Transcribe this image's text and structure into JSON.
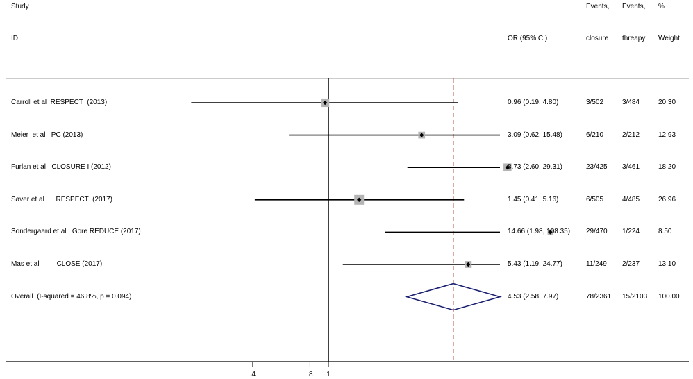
{
  "header": {
    "study": "Study",
    "id": "ID",
    "or_ci": "OR (95% CI)",
    "events_closure_1": "Events,",
    "events_closure_2": "closure",
    "events_therapy_1": "Events,",
    "events_therapy_2": "threapy",
    "weight_1": "%",
    "weight_2": "Weight"
  },
  "chart_data": {
    "type": "forest",
    "scale": "log",
    "null_value": 1,
    "overall_line_value": 4.53,
    "ticks": [
      ".4",
      ".8",
      "1"
    ],
    "tick_values": [
      0.4,
      0.8,
      1
    ],
    "studies": [
      {
        "label": "Carroll et al  RESPECT  (2013)",
        "or": 0.96,
        "lo": 0.19,
        "hi": 4.8,
        "or_text": "0.96 (0.19, 4.80)",
        "ev_closure": "3/502",
        "ev_therapy": "3/484",
        "weight": 20.3,
        "weight_text": "20.30"
      },
      {
        "label": "Meier  et al   PC (2013)",
        "or": 3.09,
        "lo": 0.62,
        "hi": 15.48,
        "or_text": "3.09 (0.62, 15.48)",
        "ev_closure": "6/210",
        "ev_therapy": "2/212",
        "weight": 12.93,
        "weight_text": "12.93"
      },
      {
        "label": "Furlan et al   CLOSURE I (2012)",
        "or": 8.73,
        "lo": 2.6,
        "hi": 29.31,
        "or_text": "8.73 (2.60, 29.31)",
        "ev_closure": "23/425",
        "ev_therapy": "3/461",
        "weight": 18.2,
        "weight_text": "18.20"
      },
      {
        "label": "Saver et al      RESPECT  (2017)",
        "or": 1.45,
        "lo": 0.41,
        "hi": 5.16,
        "or_text": "1.45 (0.41, 5.16)",
        "ev_closure": "6/505",
        "ev_therapy": "4/485",
        "weight": 26.96,
        "weight_text": "26.96"
      },
      {
        "label": "Sondergaard et al   Gore REDUCE (2017)",
        "or": 14.66,
        "lo": 1.98,
        "hi": 108.35,
        "or_text": "14.66 (1.98, 108.35)",
        "ev_closure": "29/470",
        "ev_therapy": "1/224",
        "weight": 8.5,
        "weight_text": "8.50"
      },
      {
        "label": "Mas et al         CLOSE (2017)",
        "or": 5.43,
        "lo": 1.19,
        "hi": 24.77,
        "or_text": "5.43 (1.19, 24.77)",
        "ev_closure": "11/249",
        "ev_therapy": "2/237",
        "weight": 13.1,
        "weight_text": "13.10"
      }
    ],
    "overall": {
      "label": "Overall  (I-squared = 46.8%, p = 0.094)",
      "or": 4.53,
      "lo": 2.58,
      "hi": 7.97,
      "or_text": "4.53 (2.58, 7.97)",
      "ev_closure": "78/2361",
      "ev_therapy": "15/2103",
      "weight_text": "100.00"
    }
  }
}
